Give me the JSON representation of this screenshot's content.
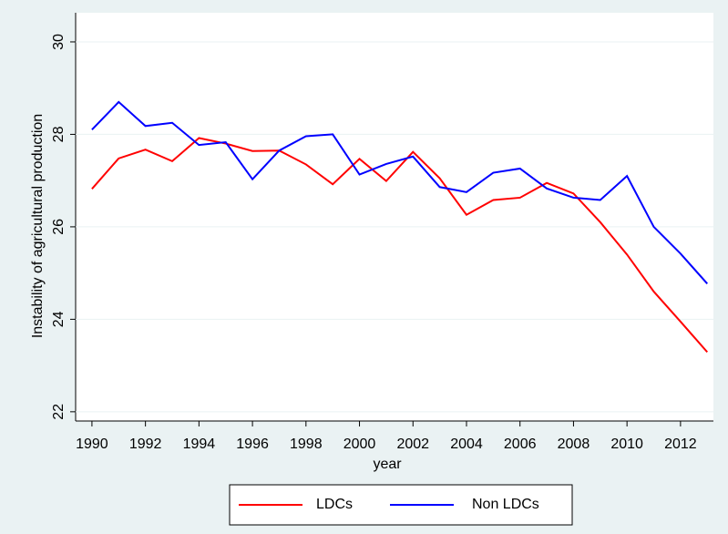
{
  "chart_data": {
    "type": "line",
    "x": [
      1990,
      1991,
      1992,
      1993,
      1994,
      1995,
      1996,
      1997,
      1998,
      1999,
      2000,
      2001,
      2002,
      2003,
      2004,
      2005,
      2006,
      2007,
      2008,
      2009,
      2010,
      2011,
      2012,
      2013
    ],
    "series": [
      {
        "name": "LDCs",
        "color": "#ff0000",
        "values": [
          26.82,
          27.48,
          27.67,
          27.42,
          27.92,
          27.8,
          27.64,
          27.65,
          27.35,
          26.92,
          27.47,
          26.99,
          27.62,
          27.05,
          26.26,
          26.58,
          26.63,
          26.95,
          26.72,
          26.1,
          25.4,
          24.6,
          23.95,
          23.29
        ]
      },
      {
        "name": "Non LDCs",
        "color": "#0000ff",
        "values": [
          28.1,
          28.7,
          28.18,
          28.25,
          27.77,
          27.83,
          27.03,
          27.65,
          27.96,
          28.0,
          27.13,
          27.36,
          27.52,
          26.86,
          26.75,
          27.17,
          27.26,
          26.83,
          26.63,
          26.58,
          27.1,
          26.0,
          25.42,
          24.77
        ]
      }
    ],
    "xlabel": "year",
    "ylabel": "Instability of agricultural production",
    "xlim": [
      1989.39,
      2013.23
    ],
    "xticks": [
      1990,
      1992,
      1994,
      1996,
      1998,
      2000,
      2002,
      2004,
      2006,
      2008,
      2010,
      2012
    ],
    "ylim": [
      21.8,
      30.63
    ],
    "yticks": [
      22,
      24,
      26,
      28,
      30
    ],
    "grid": true,
    "legend": "bottom"
  }
}
